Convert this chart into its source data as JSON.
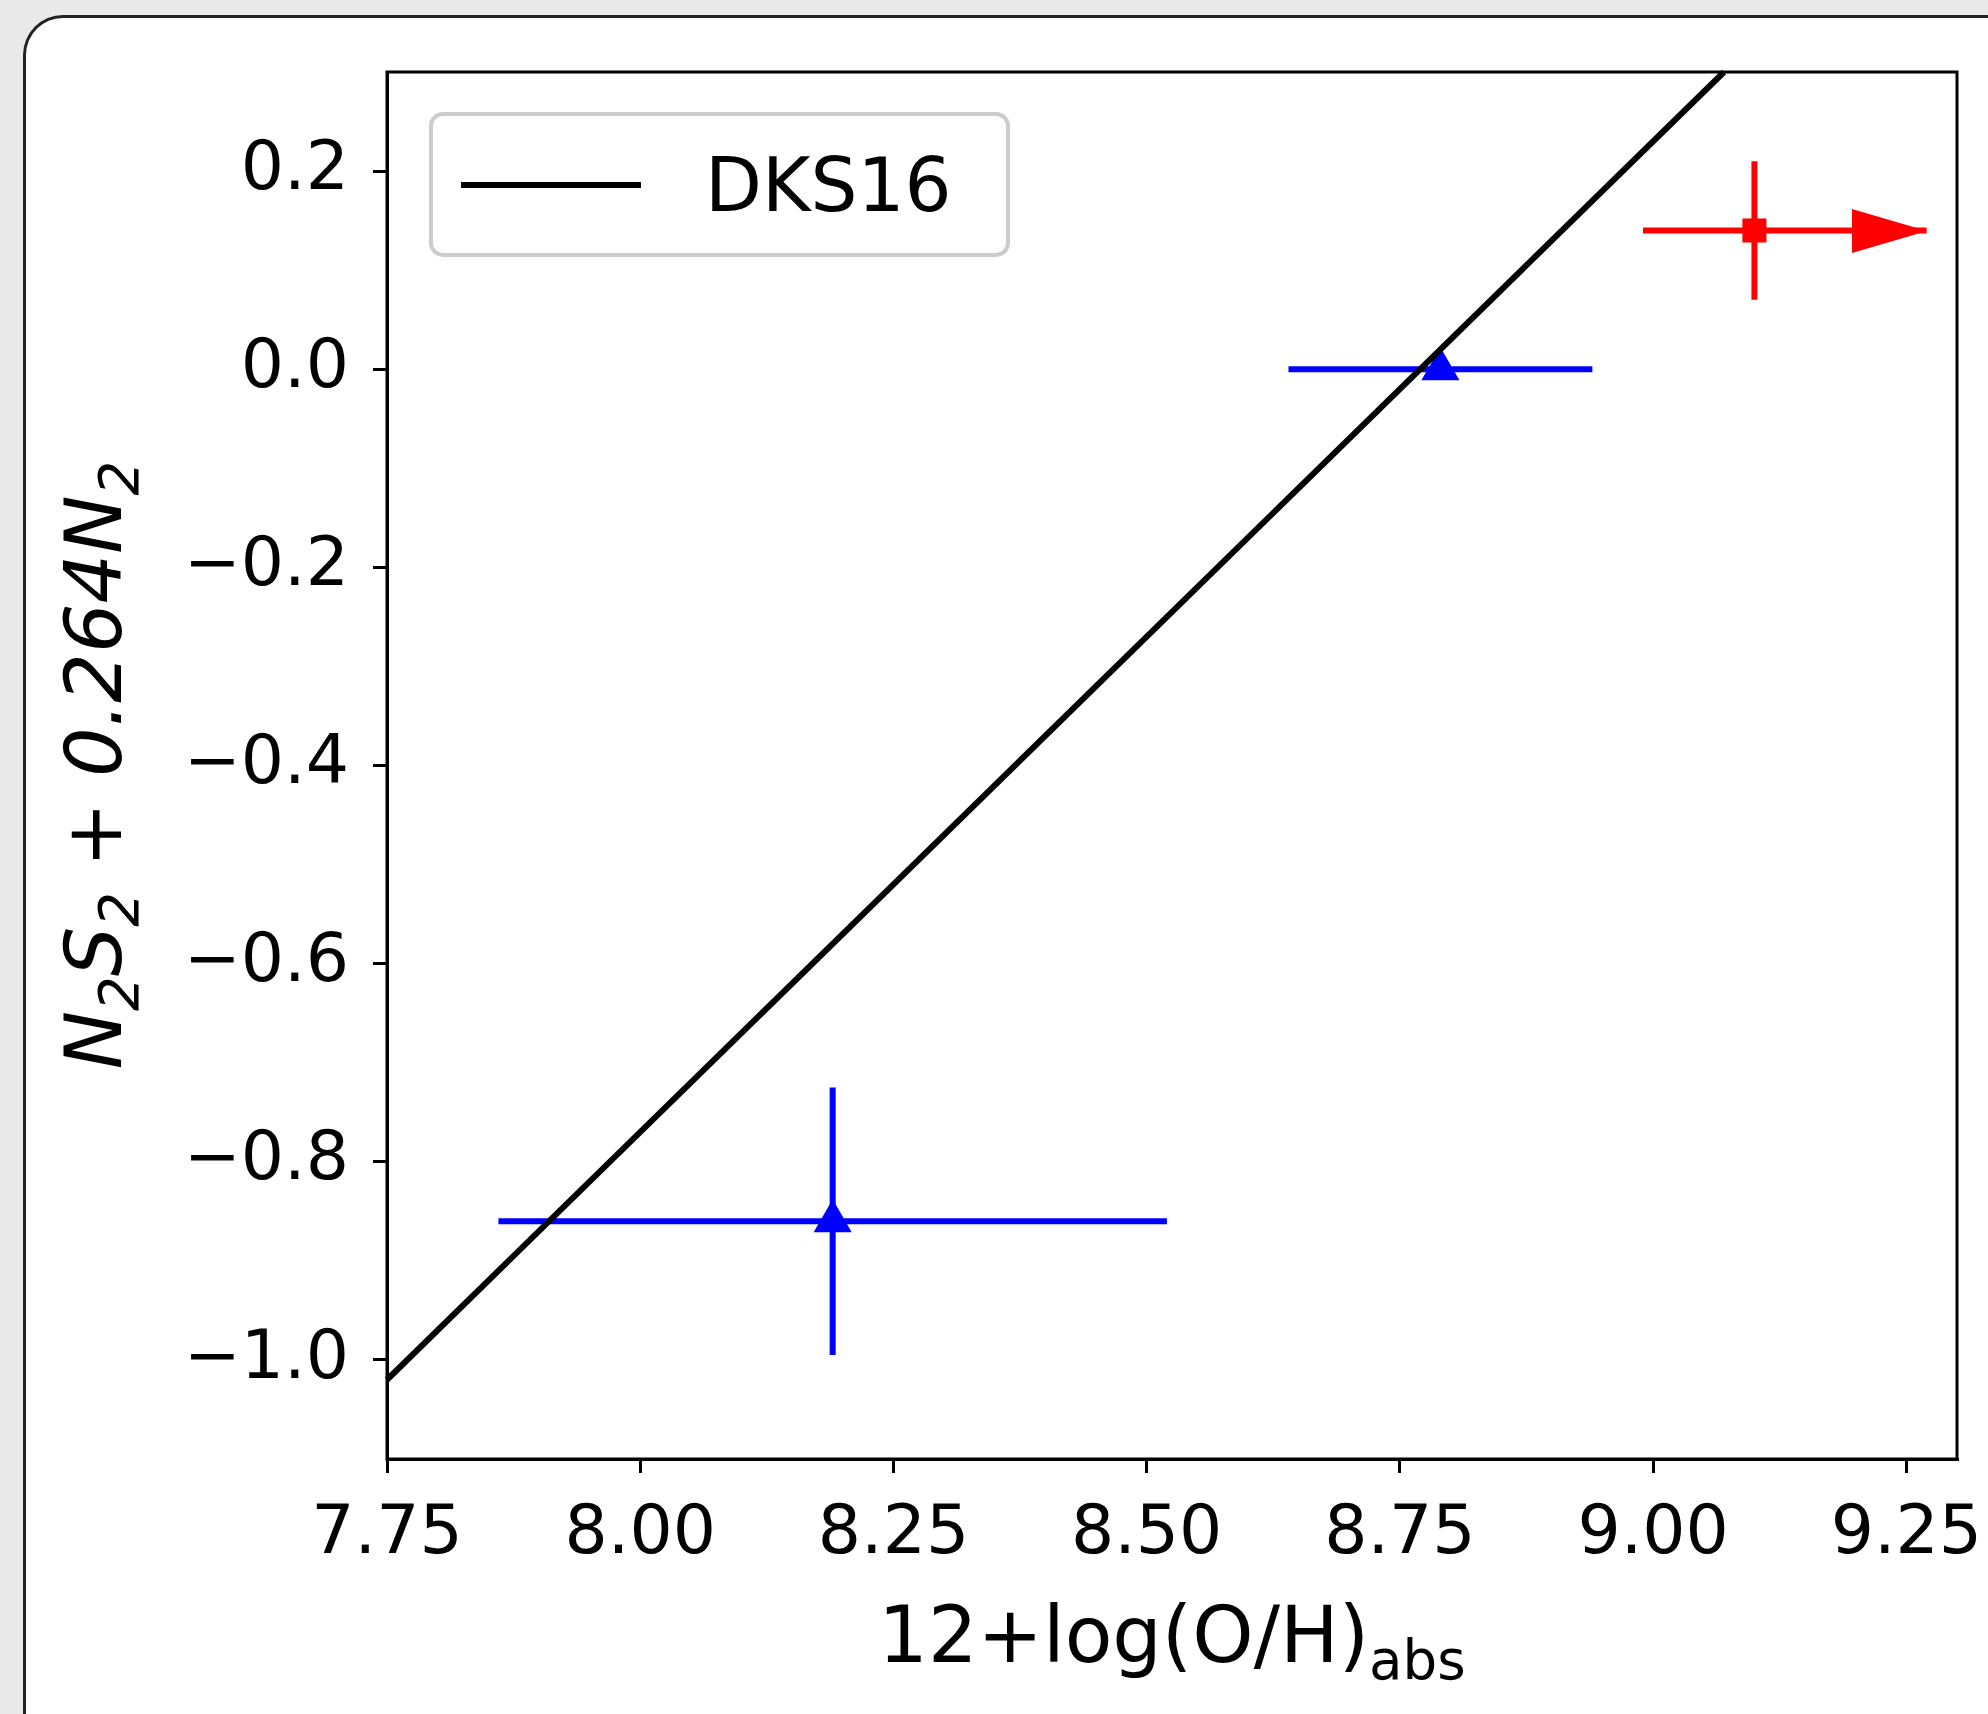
{
  "chart_data": {
    "type": "scatter",
    "xlabel": "12+log(O/H)$_{abs}$",
    "ylabel": "N$_{2}$S$_{2}$ + 0.264N$_{2}$",
    "xlim": [
      7.75,
      9.3
    ],
    "ylim": [
      -1.1,
      0.3
    ],
    "xticks": [
      {
        "value": 7.75,
        "label": "7.75"
      },
      {
        "value": 8,
        "label": "8.00"
      },
      {
        "value": 8.25,
        "label": "8.25"
      },
      {
        "value": 8.5,
        "label": "8.50"
      },
      {
        "value": 8.75,
        "label": "8.75"
      },
      {
        "value": 9,
        "label": "9.00"
      },
      {
        "value": 9.25,
        "label": "9.25"
      }
    ],
    "yticks": [
      {
        "value": -1,
        "label": "−1.0"
      },
      {
        "value": -0.8,
        "label": "−0.8"
      },
      {
        "value": -0.6,
        "label": "−0.6"
      },
      {
        "value": -0.4,
        "label": "−0.4"
      },
      {
        "value": -0.2,
        "label": "−0.2"
      },
      {
        "value": 0,
        "label": "0.0"
      },
      0.2
    ],
    "grid": false,
    "legend": "top left",
    "series": [
      {
        "name": "DKS16",
        "type": "line",
        "color": "#000000",
        "marker": "none",
        "x": [
          7.75,
          9.07
        ],
        "values": [
          -1.02,
          0.3
        ]
      },
      {
        "color": "#0000ff",
        "marker": "triangle",
        "x": [
          8.19,
          8.79
        ],
        "values": [
          -0.86,
          0.0
        ],
        "errors": [
          0.135,
          null
        ],
        "xerrors": [
          0.33,
          0.15
        ]
      },
      {
        "color": "#ff0000",
        "marker": "square",
        "x": [
          9.1
        ],
        "values": [
          0.14
        ],
        "errors": [
          0.07
        ],
        "xerrors": [
          [
            8.99,
            9.27
          ]
        ]
      }
    ]
  }
}
